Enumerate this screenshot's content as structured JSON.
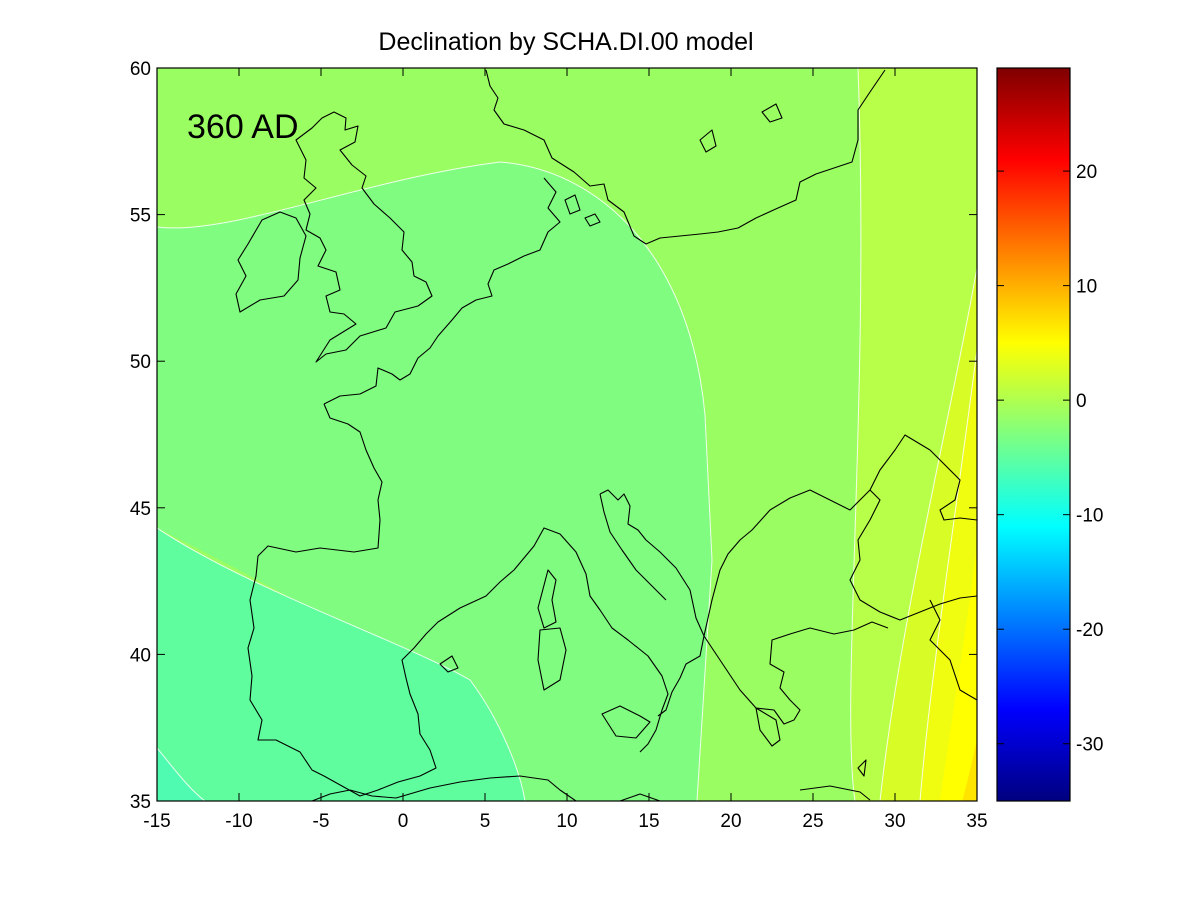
{
  "title": "Declination by SCHA.DI.00 model",
  "epoch_label": "360 AD",
  "map": {
    "lon_range": [
      -15,
      35
    ],
    "lat_range": [
      35,
      60
    ],
    "x_ticks": [
      "-15",
      "-10",
      "-5",
      "0",
      "5",
      "10",
      "15",
      "20",
      "25",
      "30",
      "35"
    ],
    "y_ticks": [
      "35",
      "40",
      "45",
      "50",
      "55",
      "60"
    ]
  },
  "colorbar": {
    "range": [
      -35,
      29
    ],
    "ticks": [
      "20",
      "10",
      "0",
      "-10",
      "-20",
      "-30"
    ],
    "colormap": "jet"
  },
  "colors": {
    "zone_west": "#5ffd9d",
    "zone_central": "#80fc80",
    "zone_north": "#9afe62",
    "zone_east_1": "#b8ff49",
    "zone_east_2": "#d8fd26",
    "zone_east_3": "#f0fd10",
    "zone_east_4": "#ffff00",
    "coastline": "#000000",
    "contour": "#ffffff"
  }
}
